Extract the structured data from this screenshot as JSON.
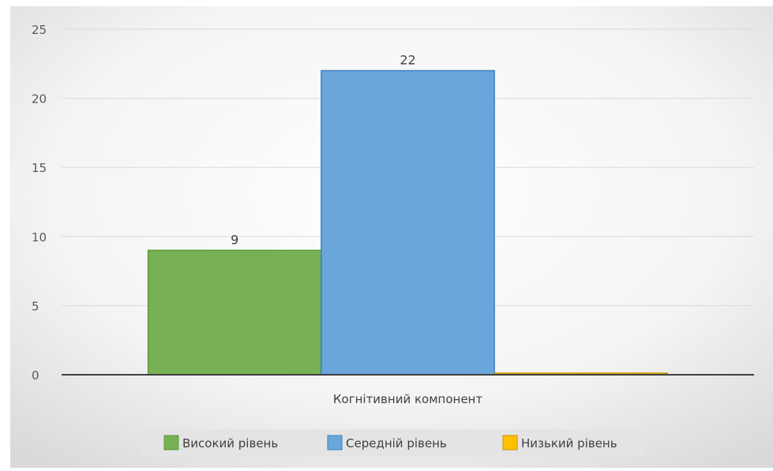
{
  "chart_data": {
    "type": "bar",
    "title": "",
    "xlabel": "",
    "ylabel": "",
    "categories": [
      "Когнітивний компонент"
    ],
    "series": [
      {
        "name": "Високий рівень",
        "values": [
          9
        ],
        "color": "#77b153",
        "stroke": "#5a9a3a"
      },
      {
        "name": "Середній рівень",
        "values": [
          22
        ],
        "color": "#6aa6dc",
        "stroke": "#3d7fc0"
      },
      {
        "name": "Низький рівень",
        "values": [
          0
        ],
        "color": "#ffc000",
        "stroke": "#c89200"
      }
    ],
    "ylim": [
      0,
      25
    ],
    "yticks": [
      0,
      5,
      10,
      15,
      20,
      25
    ],
    "data_labels": [
      "9",
      "22",
      ""
    ],
    "grid": true,
    "legend_position": "bottom"
  }
}
